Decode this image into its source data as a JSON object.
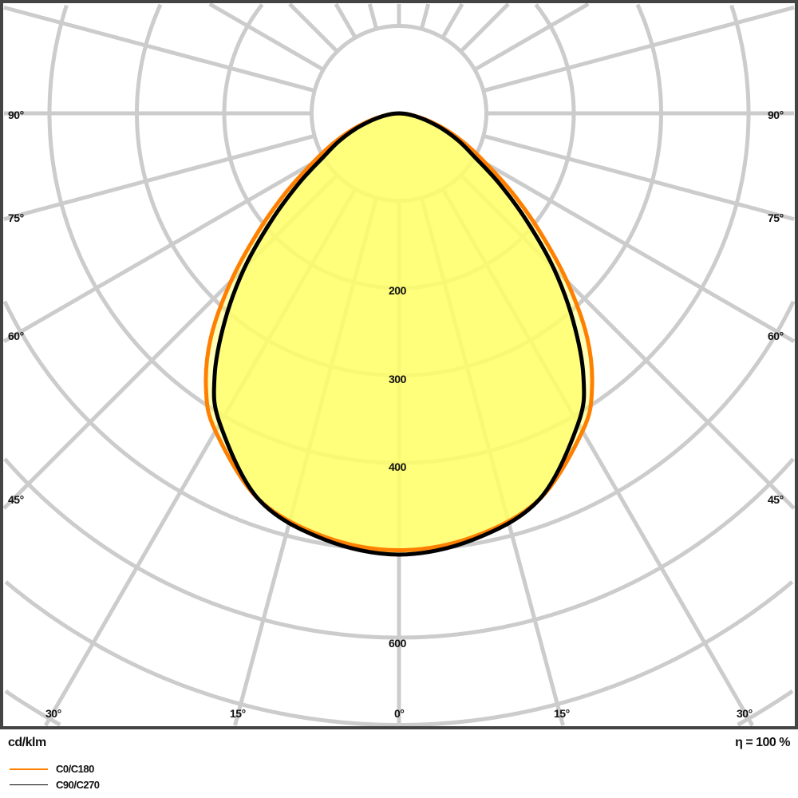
{
  "chart_data": {
    "type": "polar",
    "unit_label": "cd/klm",
    "efficiency_label": "η = 100 %",
    "radial_ticks": [
      {
        "value": 200,
        "label": "200"
      },
      {
        "value": 300,
        "label": "300"
      },
      {
        "value": 400,
        "label": "400"
      },
      {
        "value": 600,
        "label": "600"
      }
    ],
    "angle_labels": {
      "bottom": [
        "30°",
        "15°",
        "0°",
        "15°",
        "30°"
      ],
      "left": [
        "90°",
        "75°",
        "60°",
        "45°"
      ],
      "right": [
        "90°",
        "75°",
        "60°",
        "45°"
      ]
    },
    "angles_deg": [
      0,
      10,
      20,
      30,
      35,
      40,
      45,
      50,
      55,
      60,
      65,
      70,
      75,
      80,
      85,
      90
    ],
    "series": [
      {
        "name": "C0/C180",
        "color": "#ff8000",
        "values": [
          500,
          492,
          470,
          420,
          385,
          335,
          272,
          210,
          158,
          115,
          85,
          60,
          38,
          20,
          8,
          0
        ]
      },
      {
        "name": "C90/C270",
        "color": "#000000",
        "values": [
          505,
          495,
          470,
          410,
          368,
          310,
          250,
          190,
          140,
          100,
          76,
          54,
          34,
          19,
          8,
          0
        ]
      }
    ],
    "fill_color": "#ffff66",
    "grid": true
  }
}
